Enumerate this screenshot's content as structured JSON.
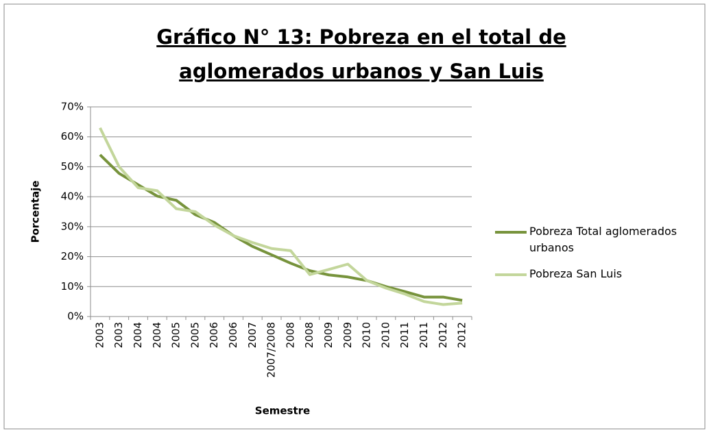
{
  "chart_data": {
    "type": "line",
    "title": [
      "Gráfico N° 13: Pobreza en el total de",
      "aglomerados urbanos y San Luis"
    ],
    "x_label": "Semestre",
    "y_label": "Porcentaje",
    "categories": [
      "2003",
      "2003",
      "2004",
      "2004",
      "2005",
      "2005",
      "2006",
      "2006",
      "2007",
      "2007/2008",
      "2008",
      "2008",
      "2009",
      "2009",
      "2010",
      "2010",
      "2011",
      "2011",
      "2012",
      "2012"
    ],
    "series": [
      {
        "name": "Pobreza Total aglomerados urbanos",
        "color": "#77933c",
        "values": [
          54,
          47.8,
          44,
          40.2,
          38.8,
          34,
          31.4,
          27,
          23.4,
          20.6,
          17.8,
          15.3,
          13.9,
          13.2,
          12,
          10,
          8.3,
          6.5,
          6.5,
          5.4
        ]
      },
      {
        "name": "Pobreza San Luis",
        "color": "#c3d69b",
        "values": [
          63,
          50,
          43,
          42,
          36,
          35,
          30.5,
          27,
          24.7,
          22.7,
          22,
          14,
          15.7,
          17.5,
          12,
          9.5,
          7.5,
          5,
          4,
          4.5
        ]
      }
    ],
    "ylim": [
      0,
      70
    ],
    "yticks": [
      {
        "value": 0,
        "label": "0%"
      },
      {
        "value": 10,
        "label": "10%"
      },
      {
        "value": 20,
        "label": "20%"
      },
      {
        "value": 30,
        "label": "30%"
      },
      {
        "value": 40,
        "label": "40%"
      },
      {
        "value": 50,
        "label": "50%"
      },
      {
        "value": 60,
        "label": "60%"
      },
      {
        "value": 70,
        "label": "70%"
      }
    ],
    "grid": true,
    "legend": "right"
  }
}
